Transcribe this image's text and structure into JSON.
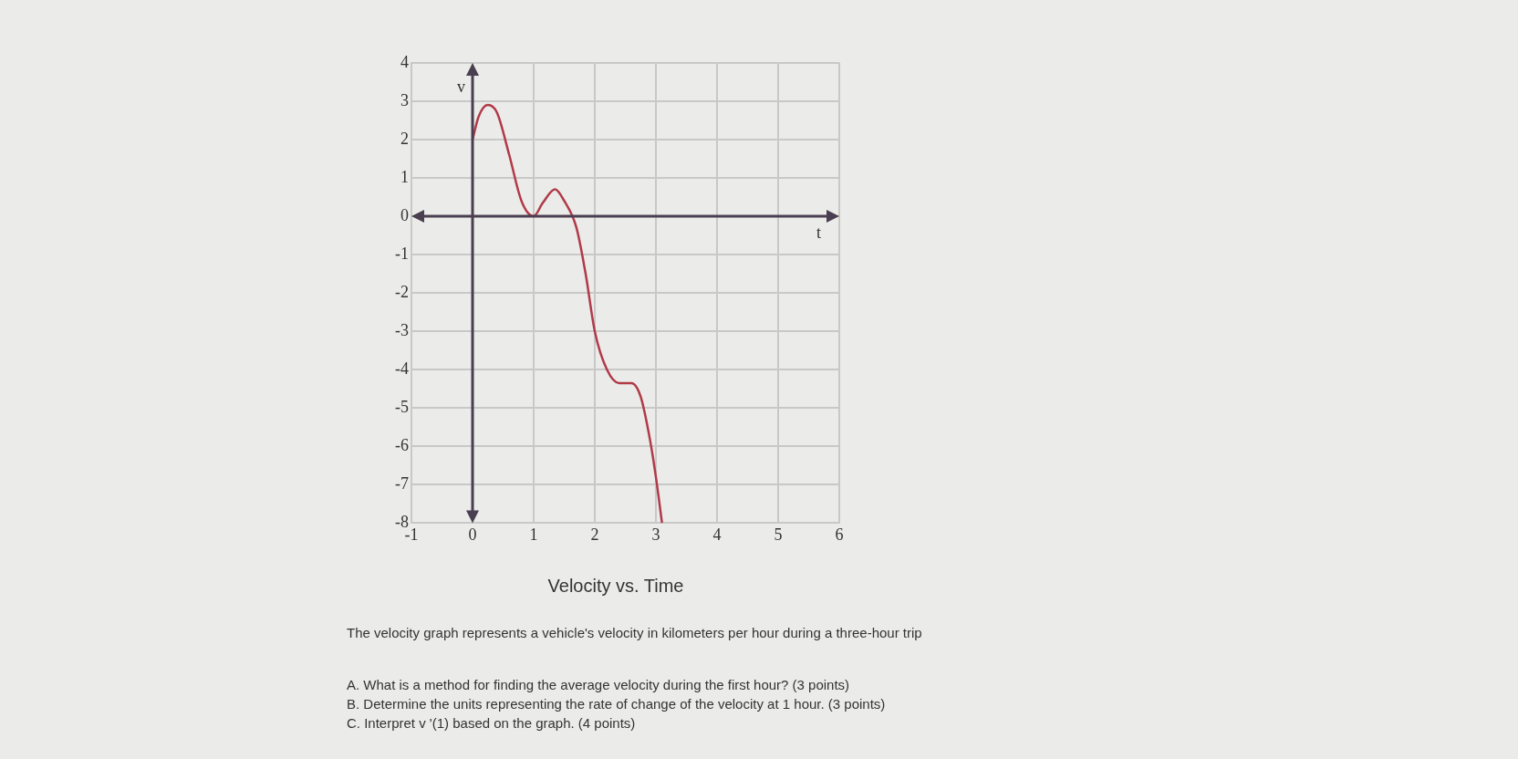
{
  "chart_data": {
    "type": "line",
    "title": "Velocity vs. Time",
    "xlabel": "t",
    "ylabel": "v",
    "x": [
      0,
      0.1,
      0.25,
      0.4,
      0.6,
      0.8,
      1,
      1.15,
      1.35,
      1.5,
      1.7,
      1.85,
      2,
      2.2,
      2.4,
      2.6,
      2.75,
      2.9,
      3,
      3.1
    ],
    "series": [
      {
        "color": "#b03a48",
        "values": [
          2,
          2.6,
          2.9,
          2.7,
          1.6,
          0.4,
          0,
          0.35,
          0.7,
          0.4,
          -0.3,
          -1.5,
          -3,
          -4,
          -4.35,
          -4.35,
          -4.7,
          -5.8,
          -6.8,
          -8
        ]
      }
    ],
    "xlim": [
      -1,
      6
    ],
    "xticks": [
      -1,
      0,
      1,
      2,
      3,
      4,
      5,
      6
    ],
    "ylim": [
      -8,
      4
    ],
    "yticks": [
      -8,
      -7,
      -6,
      -5,
      -4,
      -3,
      -2,
      -1,
      0,
      1,
      2,
      3,
      4
    ],
    "grid": true,
    "marker": "none",
    "line_style": "solid",
    "annotations": [
      "The velocity graph represents a vehicle's velocity in kilometers per hour during a three-hour trip",
      "A. What is a method for finding the average velocity during the first hour? (3 points)",
      "B. Determine the units representing the rate of change of the velocity at 1 hour. (3 points)",
      "C. Interpret v '(1) based on the graph. (4 points)"
    ]
  }
}
